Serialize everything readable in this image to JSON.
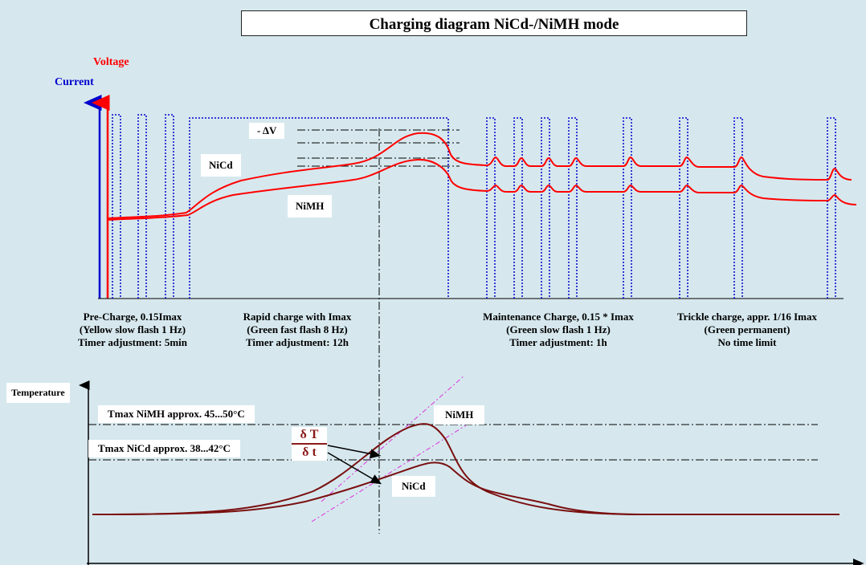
{
  "title": "Charging diagram NiCd-/NiMH mode",
  "labels": {
    "voltage": "Voltage",
    "current": "Current",
    "delta_v": "- ΔV",
    "nicd_upper": "NiCd",
    "nimh_upper": "NiMH",
    "temperature": "Temperature",
    "tmax_nimh": "Tmax NiMH approx. 45...50°C",
    "tmax_nicd": "Tmax NiCd approx. 38...42°C",
    "nimh_lower": "NiMH",
    "nicd_lower": "NiCd",
    "dT": "δ T",
    "dt": "δ t"
  },
  "phases": [
    {
      "line1": "Pre-Charge, 0.15Imax",
      "line2": "(Yellow slow flash 1 Hz)",
      "line3": "Timer adjustment: 5min"
    },
    {
      "line1": "Rapid charge with Imax",
      "line2": "(Green fast flash 8 Hz)",
      "line3": "Timer adjustment: 12h"
    },
    {
      "line1": "Maintenance Charge, 0.15 * Imax",
      "line2": "(Green slow flash 1 Hz)",
      "line3": "Timer adjustment: 1h"
    },
    {
      "line1": "Trickle charge, appr. 1/16 Imax",
      "line2": "(Green permanent)",
      "line3": "No time limit"
    }
  ],
  "colors": {
    "background": "#d6e8ee",
    "voltage": "#ff0000",
    "current": "#0000cc",
    "temperature": "#7a1010",
    "slope": "#dd33dd"
  }
}
